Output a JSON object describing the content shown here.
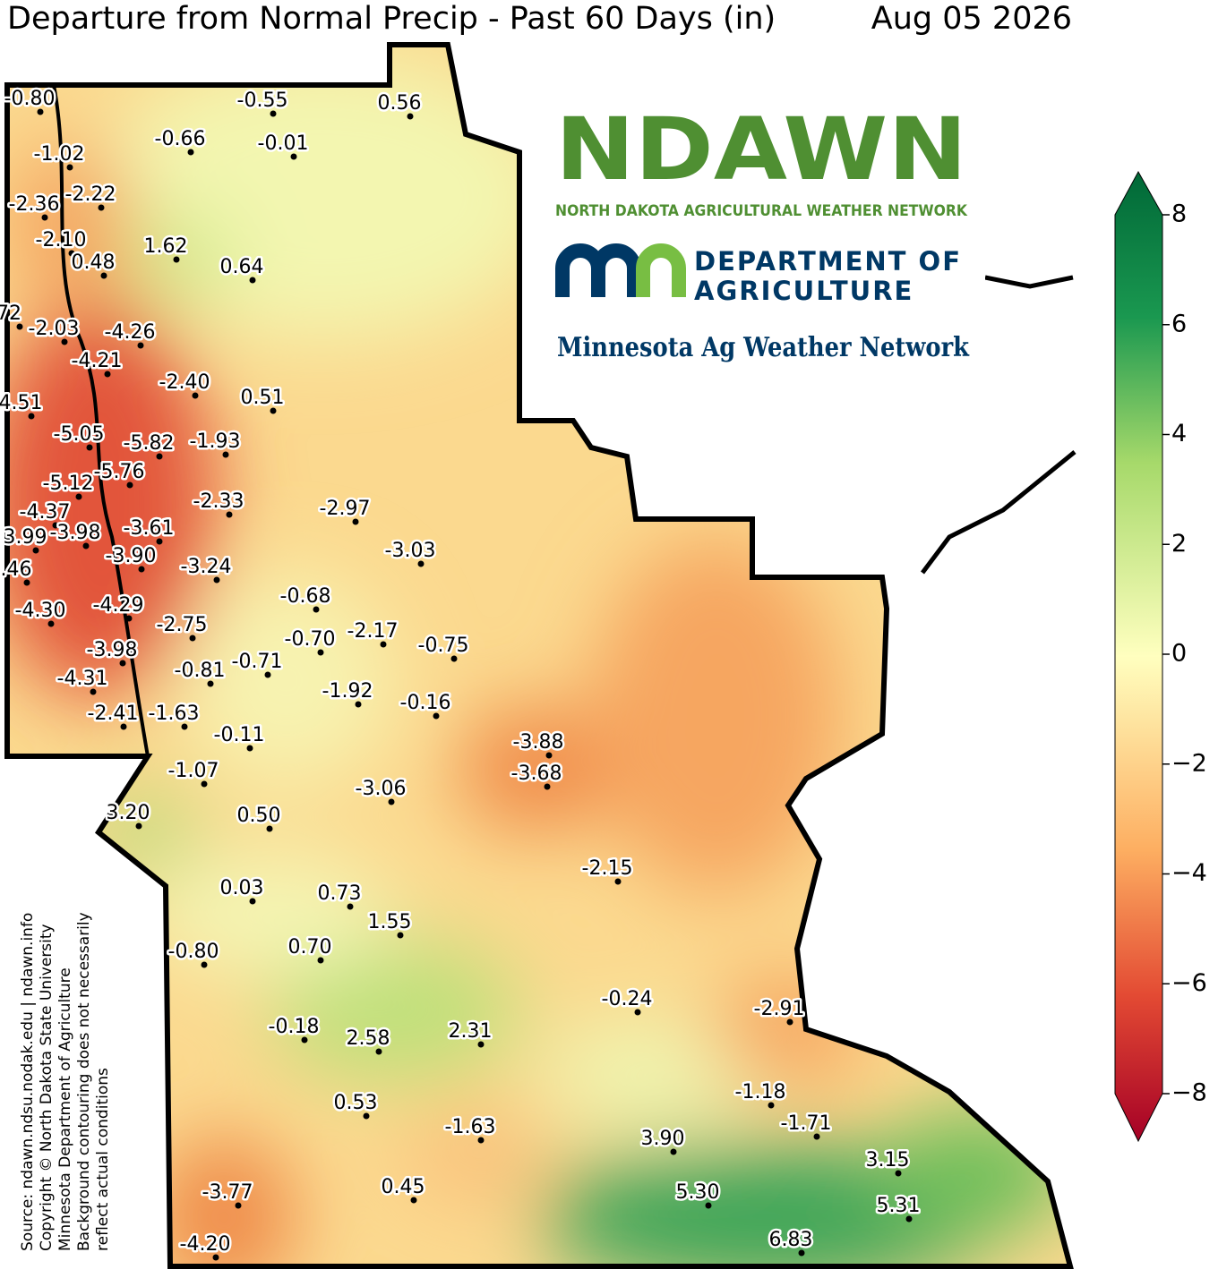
{
  "header": {
    "title": "Departure from Normal Precip - Past 60 Days (in)",
    "date": "Aug 05 2026"
  },
  "logos": {
    "ndawn": "NDAWN",
    "ndawn_subtitle": "NORTH DAKOTA AGRICULTURAL WEATHER NETWORK",
    "mda_line1": "DEPARTMENT OF",
    "mda_line2": "AGRICULTURE",
    "mawn": "Minnesota Ag Weather Network"
  },
  "source": [
    "Source: ndawn.ndsu.nodak.edu | ndawn.info",
    "Copyright © North Dakota State University",
    "Minnesota Department of Agriculture",
    "Background contouring does not necessarily",
    "reflect actual conditions"
  ],
  "stations": [
    "-0.80",
    "-0.55",
    "0.56",
    "-0.66",
    "-0.01",
    "-1.02",
    "-2.22",
    "-2.36",
    "-2.10",
    "1.62",
    "0.48",
    "0.64",
    "72",
    "-2.03",
    "-4.26",
    "-4.21",
    "-2.40",
    "0.51",
    "4.51",
    "-5.05",
    "-5.82",
    "-1.93",
    "-5.76",
    "-5.12",
    "-2.33",
    "-2.97",
    "-4.37",
    "-3.61",
    "3.99",
    "-3.98",
    "-3.03",
    "-3.90",
    "-3.24",
    ".46",
    "-0.68",
    "-4.30",
    "-4.29",
    "-2.75",
    "-2.17",
    "-0.70",
    "-0.75",
    "-3.98",
    "-0.81",
    "-0.71",
    "-4.31",
    "-1.92",
    "-0.16",
    "-2.41",
    "-1.63",
    "-0.11",
    "-3.88",
    "-1.07",
    "-3.68",
    "-3.06",
    "3.20",
    "0.50",
    "-2.15",
    "0.03",
    "0.73",
    "1.55",
    "-0.80",
    "0.70",
    "-0.24",
    "-2.91",
    "-0.18",
    "2.58",
    "2.31",
    "-1.18",
    "-1.71",
    "0.53",
    "-1.63",
    "3.90",
    "3.15",
    "5.30",
    "0.45",
    "-3.77",
    "5.31",
    "6.83",
    "-4.20"
  ],
  "colorbar": {
    "ylim": [
      -8,
      8
    ],
    "yticks": [
      {
        "value": 8,
        "label": "8"
      },
      {
        "value": 6,
        "label": "6"
      },
      {
        "value": 4,
        "label": "4"
      },
      {
        "value": 2,
        "label": "2"
      },
      {
        "value": 0,
        "label": "0"
      },
      {
        "value": -2,
        "label": "−2"
      },
      {
        "value": -4,
        "label": "−4"
      },
      {
        "value": -6,
        "label": "−6"
      },
      {
        "value": -8,
        "label": "−8"
      }
    ]
  }
}
